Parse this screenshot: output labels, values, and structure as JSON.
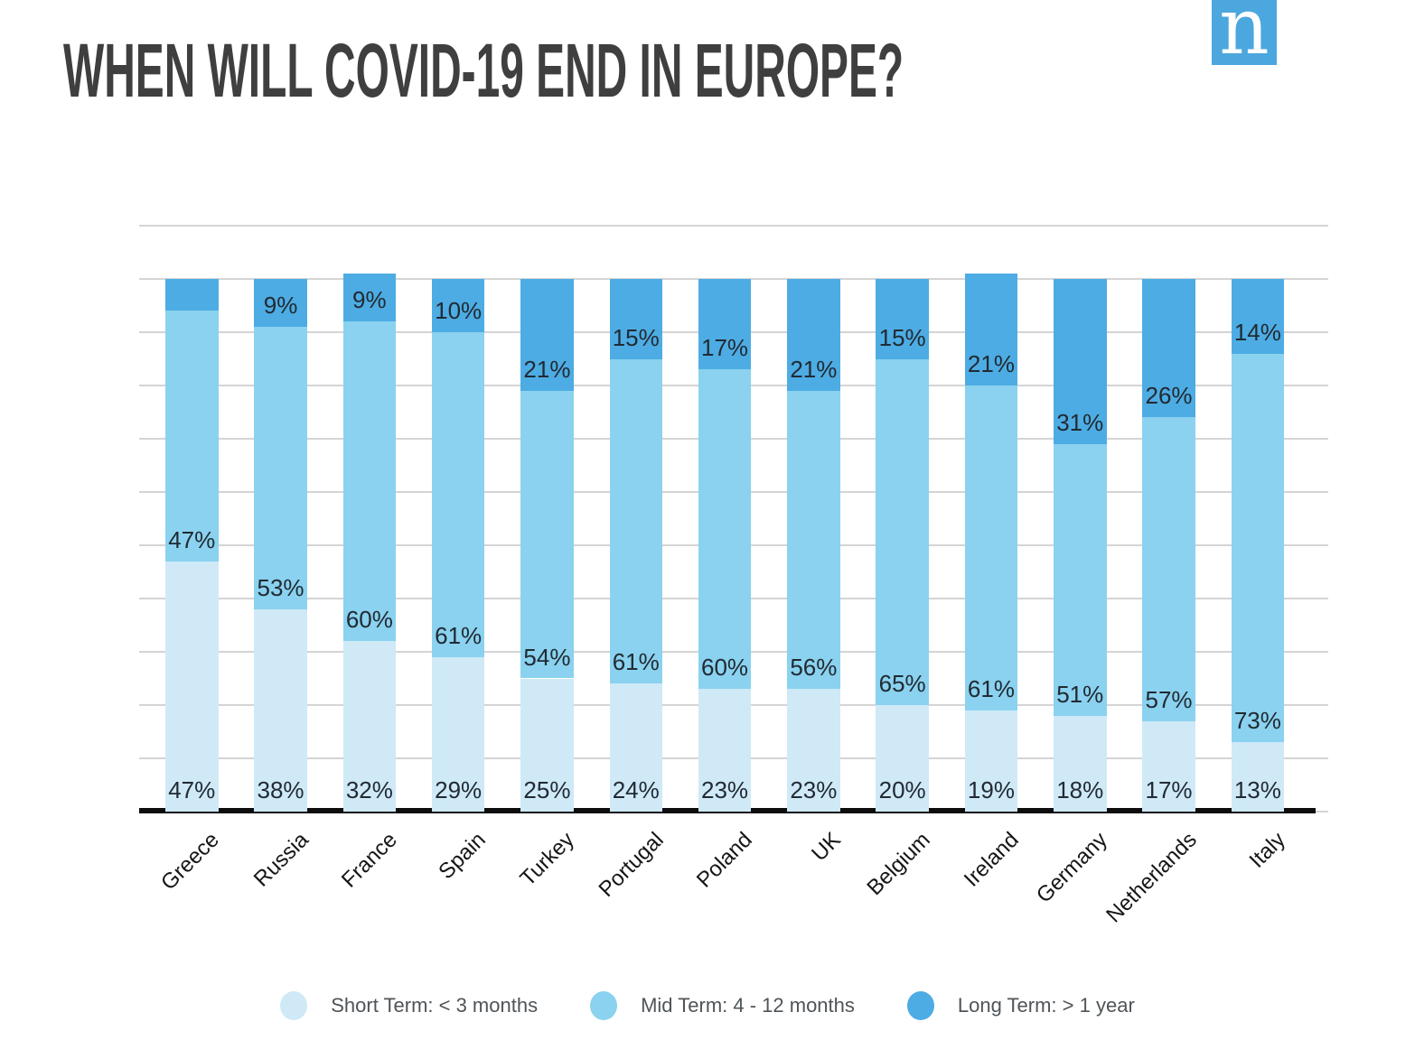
{
  "header": {
    "title": "WHEN WILL COVID-19 END IN EUROPE?",
    "logo_letter": "n",
    "logo_color": "#4ba7de"
  },
  "chart_data": {
    "type": "bar",
    "stacked": true,
    "title": "WHEN WILL COVID-19 END IN EUROPE?",
    "categories": [
      "Greece",
      "Russia",
      "France",
      "Spain",
      "Turkey",
      "Portugal",
      "Poland",
      "UK",
      "Belgium",
      "Ireland",
      "Germany",
      "Netherlands",
      "Italy"
    ],
    "series": [
      {
        "name": "Short Term: < 3 months",
        "color": "#cfe9f7",
        "values": [
          47,
          38,
          32,
          29,
          25,
          24,
          23,
          23,
          20,
          19,
          18,
          17,
          13
        ],
        "labels": [
          "47%",
          "38%",
          "32%",
          "29%",
          "25%",
          "24%",
          "23%",
          "23%",
          "20%",
          "19%",
          "18%",
          "17%",
          "13%"
        ]
      },
      {
        "name": "Mid Term: 4 - 12 months",
        "color": "#8ad2ef",
        "values": [
          47,
          53,
          60,
          61,
          54,
          61,
          60,
          56,
          65,
          61,
          51,
          57,
          73
        ],
        "labels": [
          "47%",
          "53%",
          "60%",
          "61%",
          "54%",
          "61%",
          "60%",
          "56%",
          "65%",
          "61%",
          "51%",
          "57%",
          "73%"
        ]
      },
      {
        "name": "Long Term: > 1 year",
        "color": "#4dace3",
        "values": [
          6,
          9,
          9,
          10,
          21,
          15,
          17,
          21,
          15,
          21,
          31,
          26,
          14
        ],
        "labels": [
          "",
          "9%",
          "9%",
          "10%",
          "21%",
          "15%",
          "17%",
          "21%",
          "15%",
          "21%",
          "31%",
          "26%",
          "14%"
        ]
      }
    ],
    "ylim": [
      0,
      110
    ],
    "grid": {
      "step": 10,
      "on": true
    },
    "xlabel": "",
    "ylabel": "",
    "legend_position": "bottom",
    "value_label_color": "#212a33",
    "axis_color": "#0d0d0d",
    "grid_color": "#d4d4d4"
  }
}
